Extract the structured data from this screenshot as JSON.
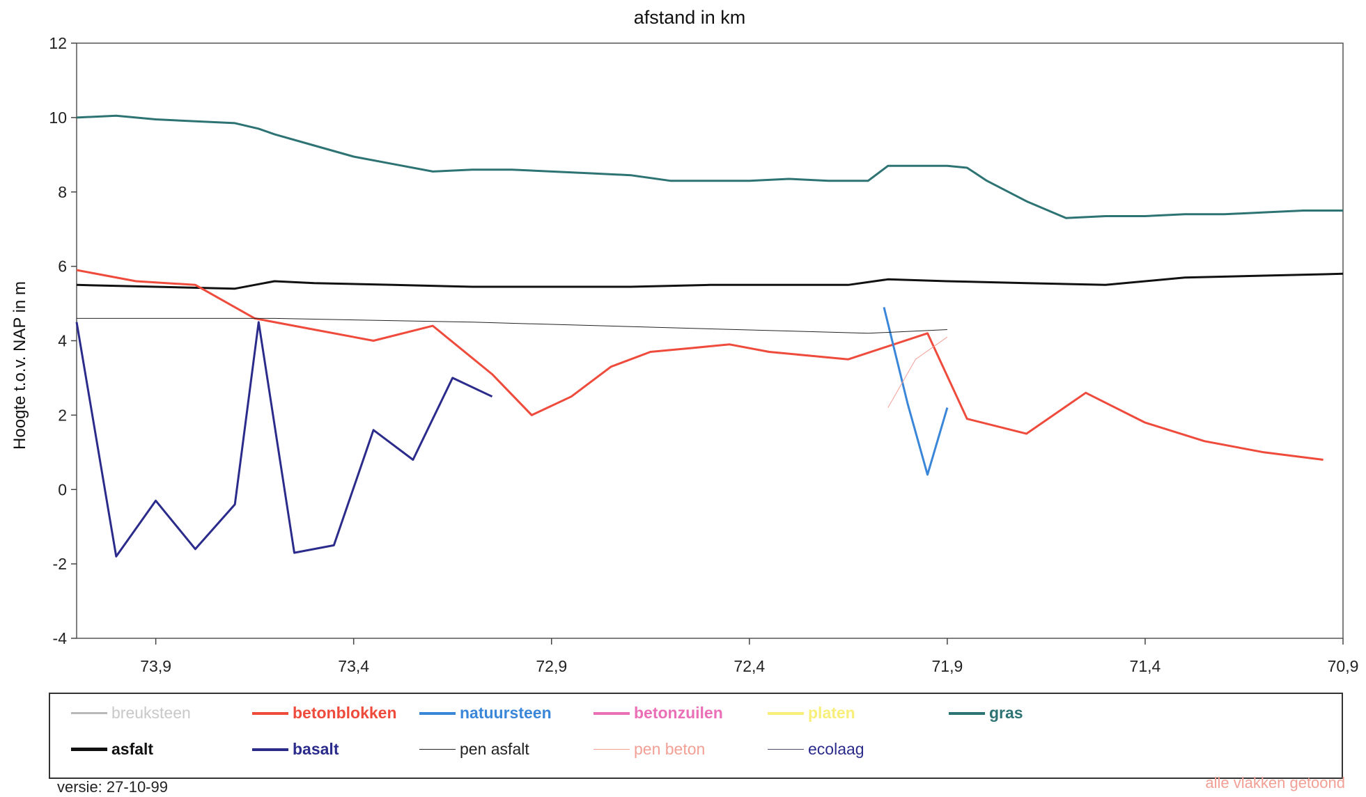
{
  "chart_data": {
    "type": "line",
    "title": "afstand in km",
    "xlabel": "",
    "ylabel": "Hoogte t.o.v. NAP in m",
    "xlim": [
      74.1,
      70.9
    ],
    "ylim": [
      -4,
      12
    ],
    "x_ticks": [
      "73,9",
      "73,4",
      "72,9",
      "72,4",
      "71,9",
      "71,4",
      "70,9"
    ],
    "x_tick_values": [
      73.9,
      73.4,
      72.9,
      72.4,
      71.9,
      71.4,
      70.9
    ],
    "y_ticks": [
      "12",
      "10",
      "8",
      "6",
      "4",
      "2",
      "0",
      "-2",
      "-4"
    ],
    "y_tick_values": [
      12,
      10,
      8,
      6,
      4,
      2,
      0,
      -2,
      -4
    ],
    "series": [
      {
        "name": "gras",
        "color": "#2e7373",
        "width": 3,
        "x": [
          74.1,
          74.0,
          73.95,
          73.9,
          73.8,
          73.7,
          73.64,
          73.6,
          73.5,
          73.4,
          73.3,
          73.2,
          73.1,
          73.0,
          72.9,
          72.8,
          72.7,
          72.6,
          72.5,
          72.4,
          72.3,
          72.2,
          72.1,
          72.05,
          71.9,
          71.85,
          71.8,
          71.7,
          71.6,
          71.5,
          71.4,
          71.3,
          71.2,
          71.1,
          71.0,
          70.9
        ],
        "y": [
          10.0,
          10.05,
          10.0,
          9.95,
          9.9,
          9.85,
          9.7,
          9.55,
          9.25,
          8.95,
          8.75,
          8.55,
          8.6,
          8.6,
          8.55,
          8.5,
          8.45,
          8.3,
          8.3,
          8.3,
          8.35,
          8.3,
          8.3,
          8.7,
          8.7,
          8.65,
          8.3,
          7.75,
          7.3,
          7.35,
          7.35,
          7.4,
          7.4,
          7.45,
          7.5,
          7.5
        ]
      },
      {
        "name": "asfalt",
        "color": "#111111",
        "width": 3,
        "x": [
          74.1,
          73.9,
          73.7,
          73.6,
          73.5,
          73.3,
          73.1,
          72.9,
          72.7,
          72.5,
          72.3,
          72.15,
          72.05,
          71.9,
          71.7,
          71.5,
          71.3,
          71.1,
          70.9
        ],
        "y": [
          5.5,
          5.45,
          5.4,
          5.6,
          5.55,
          5.5,
          5.45,
          5.45,
          5.45,
          5.5,
          5.5,
          5.5,
          5.65,
          5.6,
          5.55,
          5.5,
          5.7,
          5.75,
          5.8
        ]
      },
      {
        "name": "betonblokken",
        "color": "#ef4b3c",
        "width": 3,
        "x": [
          74.1,
          73.95,
          73.8,
          73.65,
          73.5,
          73.35,
          73.2,
          73.05,
          72.95,
          72.85,
          72.75,
          72.65,
          72.55,
          72.45,
          72.35,
          72.25,
          72.15,
          71.95,
          71.85,
          71.7,
          71.55,
          71.4,
          71.25,
          71.1,
          70.95
        ],
        "y": [
          5.9,
          5.6,
          5.5,
          4.6,
          4.3,
          4.0,
          4.4,
          3.1,
          2.0,
          2.5,
          3.3,
          3.7,
          3.8,
          3.9,
          3.7,
          3.6,
          3.5,
          4.2,
          1.9,
          1.5,
          2.6,
          1.8,
          1.3,
          1.0,
          0.8
        ]
      },
      {
        "name": "basalt",
        "color": "#2b2b8c",
        "width": 3,
        "x": [
          74.1,
          74.0,
          73.9,
          73.8,
          73.7,
          73.64,
          73.55,
          73.45,
          73.35,
          73.25,
          73.15,
          73.05
        ],
        "y": [
          4.5,
          -1.8,
          -0.3,
          -1.6,
          -0.4,
          4.5,
          -1.7,
          -1.5,
          1.6,
          0.8,
          3.0,
          2.5
        ]
      },
      {
        "name": "natuursteen",
        "color": "#3a86d8",
        "width": 3,
        "x": [
          72.06,
          72.0,
          71.95,
          71.9
        ],
        "y": [
          4.9,
          2.3,
          0.4,
          2.2
        ]
      },
      {
        "name": "pen asfalt",
        "color": "#222222",
        "width": 1,
        "x": [
          74.1,
          73.6,
          73.1,
          72.1,
          71.9
        ],
        "y": [
          4.6,
          4.6,
          4.5,
          4.2,
          4.3
        ]
      },
      {
        "name": "pen beton",
        "color": "#f2a096",
        "width": 1,
        "x": [
          72.05,
          71.98,
          71.9
        ],
        "y": [
          2.2,
          3.5,
          4.1
        ]
      }
    ],
    "legend": [
      {
        "name": "breuksteen",
        "color": "#b8b8b8",
        "label_color": "#c8c8c8",
        "width": 3
      },
      {
        "name": "betonblokken",
        "color": "#ef4b3c",
        "label_color": "#ef4b3c",
        "width": 4
      },
      {
        "name": "natuursteen",
        "color": "#3a86d8",
        "label_color": "#3a86d8",
        "width": 4
      },
      {
        "name": "betonzuilen",
        "color": "#ea6fb6",
        "label_color": "#ea6fb6",
        "width": 4
      },
      {
        "name": "platen",
        "color": "#f7ef7a",
        "label_color": "#f7ef7a",
        "width": 4
      },
      {
        "name": "gras",
        "color": "#2e7373",
        "label_color": "#2e7373",
        "width": 4
      },
      {
        "name": "asfalt",
        "color": "#111111",
        "label_color": "#111111",
        "width": 5
      },
      {
        "name": "basalt",
        "color": "#2b2b8c",
        "label_color": "#2b2b8c",
        "width": 4
      },
      {
        "name": "pen asfalt",
        "color": "#222222",
        "label_color": "#222222",
        "width": 1
      },
      {
        "name": "pen beton",
        "color": "#f2a096",
        "label_color": "#f2a096",
        "width": 1
      },
      {
        "name": "ecolaag",
        "color": "#4a4a6a",
        "label_color": "#2b2b8c",
        "width": 1
      }
    ],
    "grid": false,
    "legend_position": "bottom"
  },
  "footer": {
    "version": "versie: 27-10-99",
    "note": "alle vlakken getoond"
  }
}
